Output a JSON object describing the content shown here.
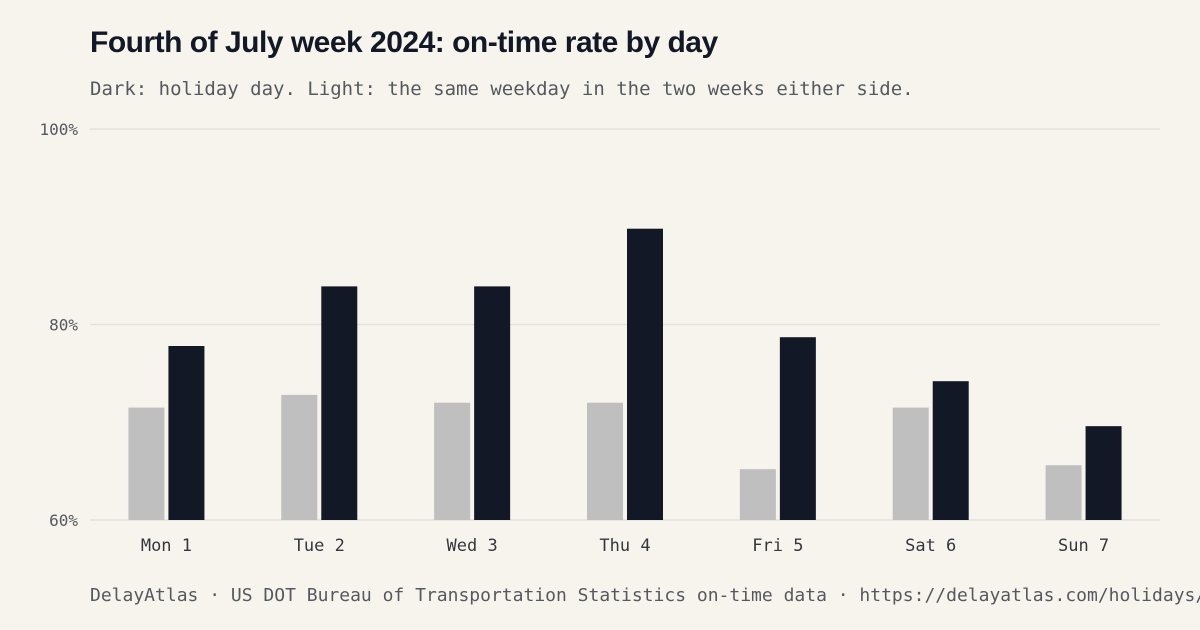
{
  "header": {
    "title": "Fourth of July week 2024: on-time rate by day",
    "subtitle": "Dark: holiday day. Light: the same weekday in the two weeks either side."
  },
  "footer": {
    "text": "DelayAtlas · US DOT Bureau of Transportation Statistics on-time data · https://delayatlas.com/holidays/"
  },
  "colors": {
    "holiday": "#121826",
    "baseline": "#bfbfbf",
    "grid": "#e4e1db"
  },
  "chart_data": {
    "type": "bar",
    "title": "Fourth of July week 2024: on-time rate by day",
    "subtitle": "Dark: holiday day. Light: the same weekday in the two weeks either side.",
    "categories": [
      "Mon 1",
      "Tue 2",
      "Wed 3",
      "Thu 4",
      "Fri 5",
      "Sat 6",
      "Sun 7"
    ],
    "series": [
      {
        "values": [
          71.5,
          72.8,
          72.0,
          72.0,
          65.2,
          71.5,
          65.6
        ]
      },
      {
        "values": [
          77.8,
          83.9,
          83.9,
          89.8,
          78.7,
          74.2,
          69.6
        ]
      }
    ],
    "ylim": [
      60,
      100
    ],
    "yticks": [
      60,
      80,
      100
    ],
    "ytick_labels": [
      "60%",
      "80%",
      "100%"
    ],
    "grid": true,
    "legend": "none"
  }
}
